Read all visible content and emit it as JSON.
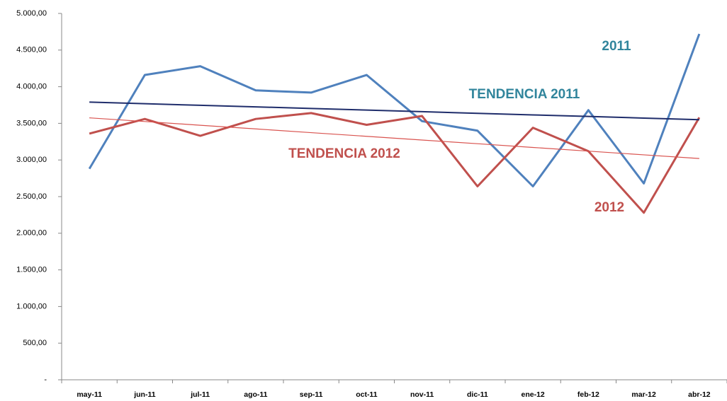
{
  "chart_data": {
    "type": "line",
    "categories": [
      "may-11",
      "jun-11",
      "jul-11",
      "ago-11",
      "sep-11",
      "oct-11",
      "nov-11",
      "dic-11",
      "ene-12",
      "feb-12",
      "mar-12",
      "abr-12"
    ],
    "series": [
      {
        "name": "2011",
        "color": "#4f81bd",
        "label_color": "#31859c",
        "values": [
          2880,
          4160,
          4280,
          3950,
          3920,
          4160,
          3530,
          3400,
          2640,
          3680,
          2680,
          4720
        ]
      },
      {
        "name": "2012",
        "color": "#c0504d",
        "label_color": "#c0504d",
        "values": [
          3360,
          3560,
          3330,
          3560,
          3640,
          3480,
          3600,
          2640,
          3440,
          3120,
          2280,
          3580
        ]
      },
      {
        "name": "TENDENCIA 2011",
        "color": "#1f2d6b",
        "label_color": "#31859c",
        "values": [
          3790,
          3768,
          3746,
          3725,
          3703,
          3681,
          3659,
          3637,
          3615,
          3594,
          3572,
          3550
        ]
      },
      {
        "name": "TENDENCIA 2012",
        "color": "#d9534f",
        "label_color": "#c0504d",
        "values": [
          3575,
          3525,
          3474,
          3424,
          3373,
          3323,
          3272,
          3222,
          3171,
          3121,
          3070,
          3020
        ]
      }
    ],
    "ylim": [
      0,
      5000
    ],
    "yticks": [
      {
        "value": 0,
        "label": "-"
      },
      {
        "value": 500,
        "label": "500,00"
      },
      {
        "value": 1000,
        "label": "1.000,00"
      },
      {
        "value": 1500,
        "label": "1.500,00"
      },
      {
        "value": 2000,
        "label": "2.000,00"
      },
      {
        "value": 2500,
        "label": "2.500,00"
      },
      {
        "value": 3000,
        "label": "3.000,00"
      },
      {
        "value": 3500,
        "label": "3.500,00"
      },
      {
        "value": 4000,
        "label": "4.000,00"
      },
      {
        "value": 4500,
        "label": "4.500,00"
      },
      {
        "value": 5000,
        "label": "5.000,00"
      }
    ],
    "grid": false
  }
}
